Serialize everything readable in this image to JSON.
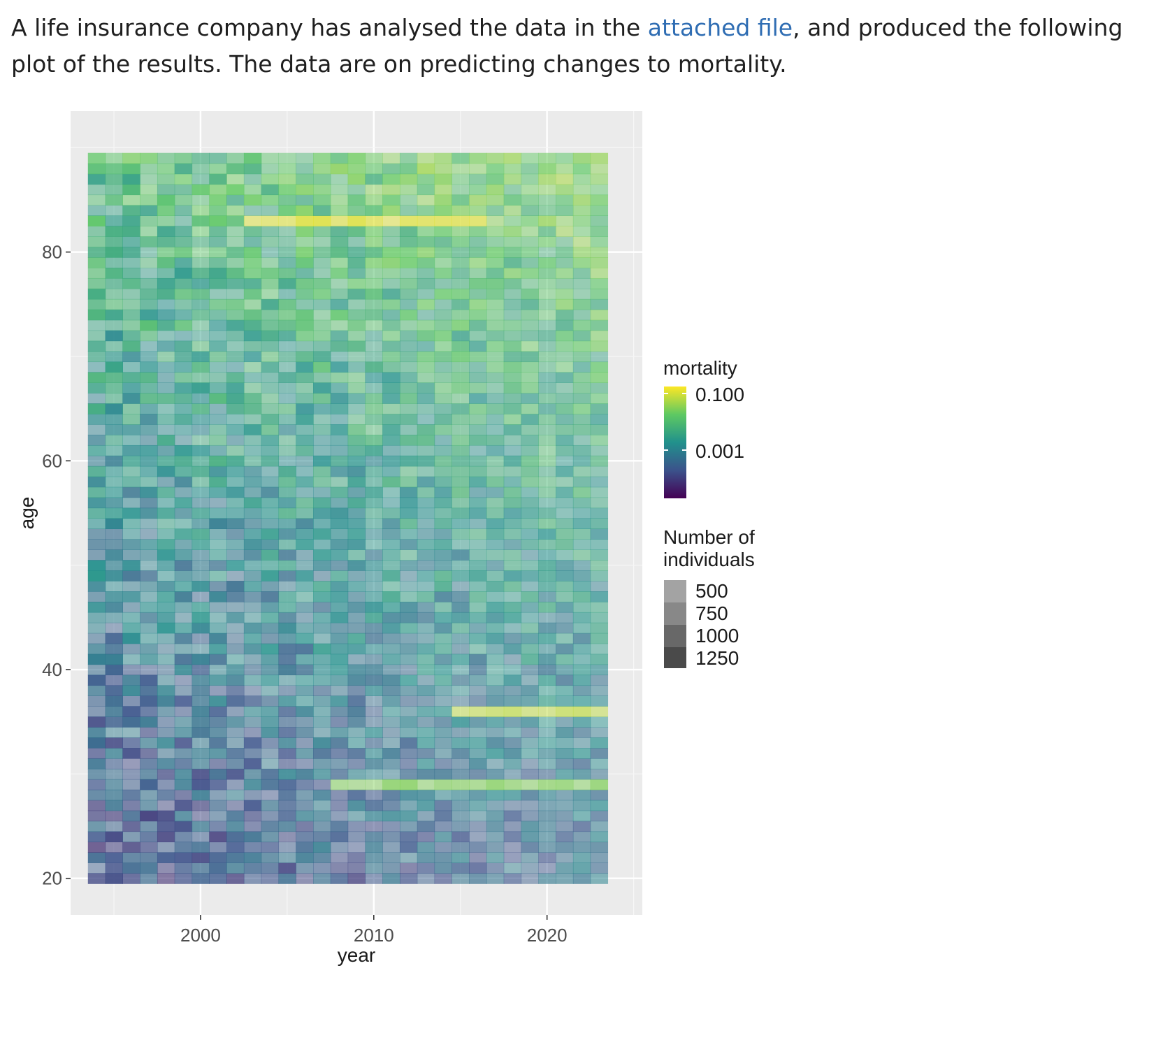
{
  "intro": {
    "text_before_link": "A life insurance company has analysed the data in the ",
    "link_text": "attached file",
    "text_after_link": ", and produced the following plot of the results. The data are on predicting changes to mortality."
  },
  "chart_data": {
    "type": "heatmap",
    "title": "",
    "xlabel": "year",
    "ylabel": "age",
    "x_ticks": [
      "2000",
      "2010",
      "2020"
    ],
    "x_tick_values": [
      2000,
      2010,
      2020
    ],
    "y_ticks": [
      "20",
      "40",
      "60",
      "80"
    ],
    "y_tick_values": [
      20,
      40,
      60,
      80
    ],
    "xlim": [
      1992.5,
      2025.5
    ],
    "ylim": [
      16.5,
      93.5
    ],
    "x_range": [
      1994,
      2023
    ],
    "y_range": [
      20,
      89
    ],
    "fill_scale": "log10",
    "colormap": "viridis",
    "grid": true,
    "legend_position": "right",
    "legend": {
      "fill_title": "mortality",
      "fill_labels": [
        "0.100",
        "0.001"
      ],
      "fill_values": [
        0.1,
        0.001
      ],
      "alpha_title_line1": "Number of",
      "alpha_title_line2": "individuals",
      "alpha_labels": [
        "500",
        "750",
        "1000",
        "1250"
      ]
    },
    "colors": {
      "panel_background": "#ebebeb",
      "gridline": "#ffffff",
      "viridis_low": "#440154",
      "viridis_mid": "#21908c",
      "viridis_high": "#fde725"
    }
  }
}
